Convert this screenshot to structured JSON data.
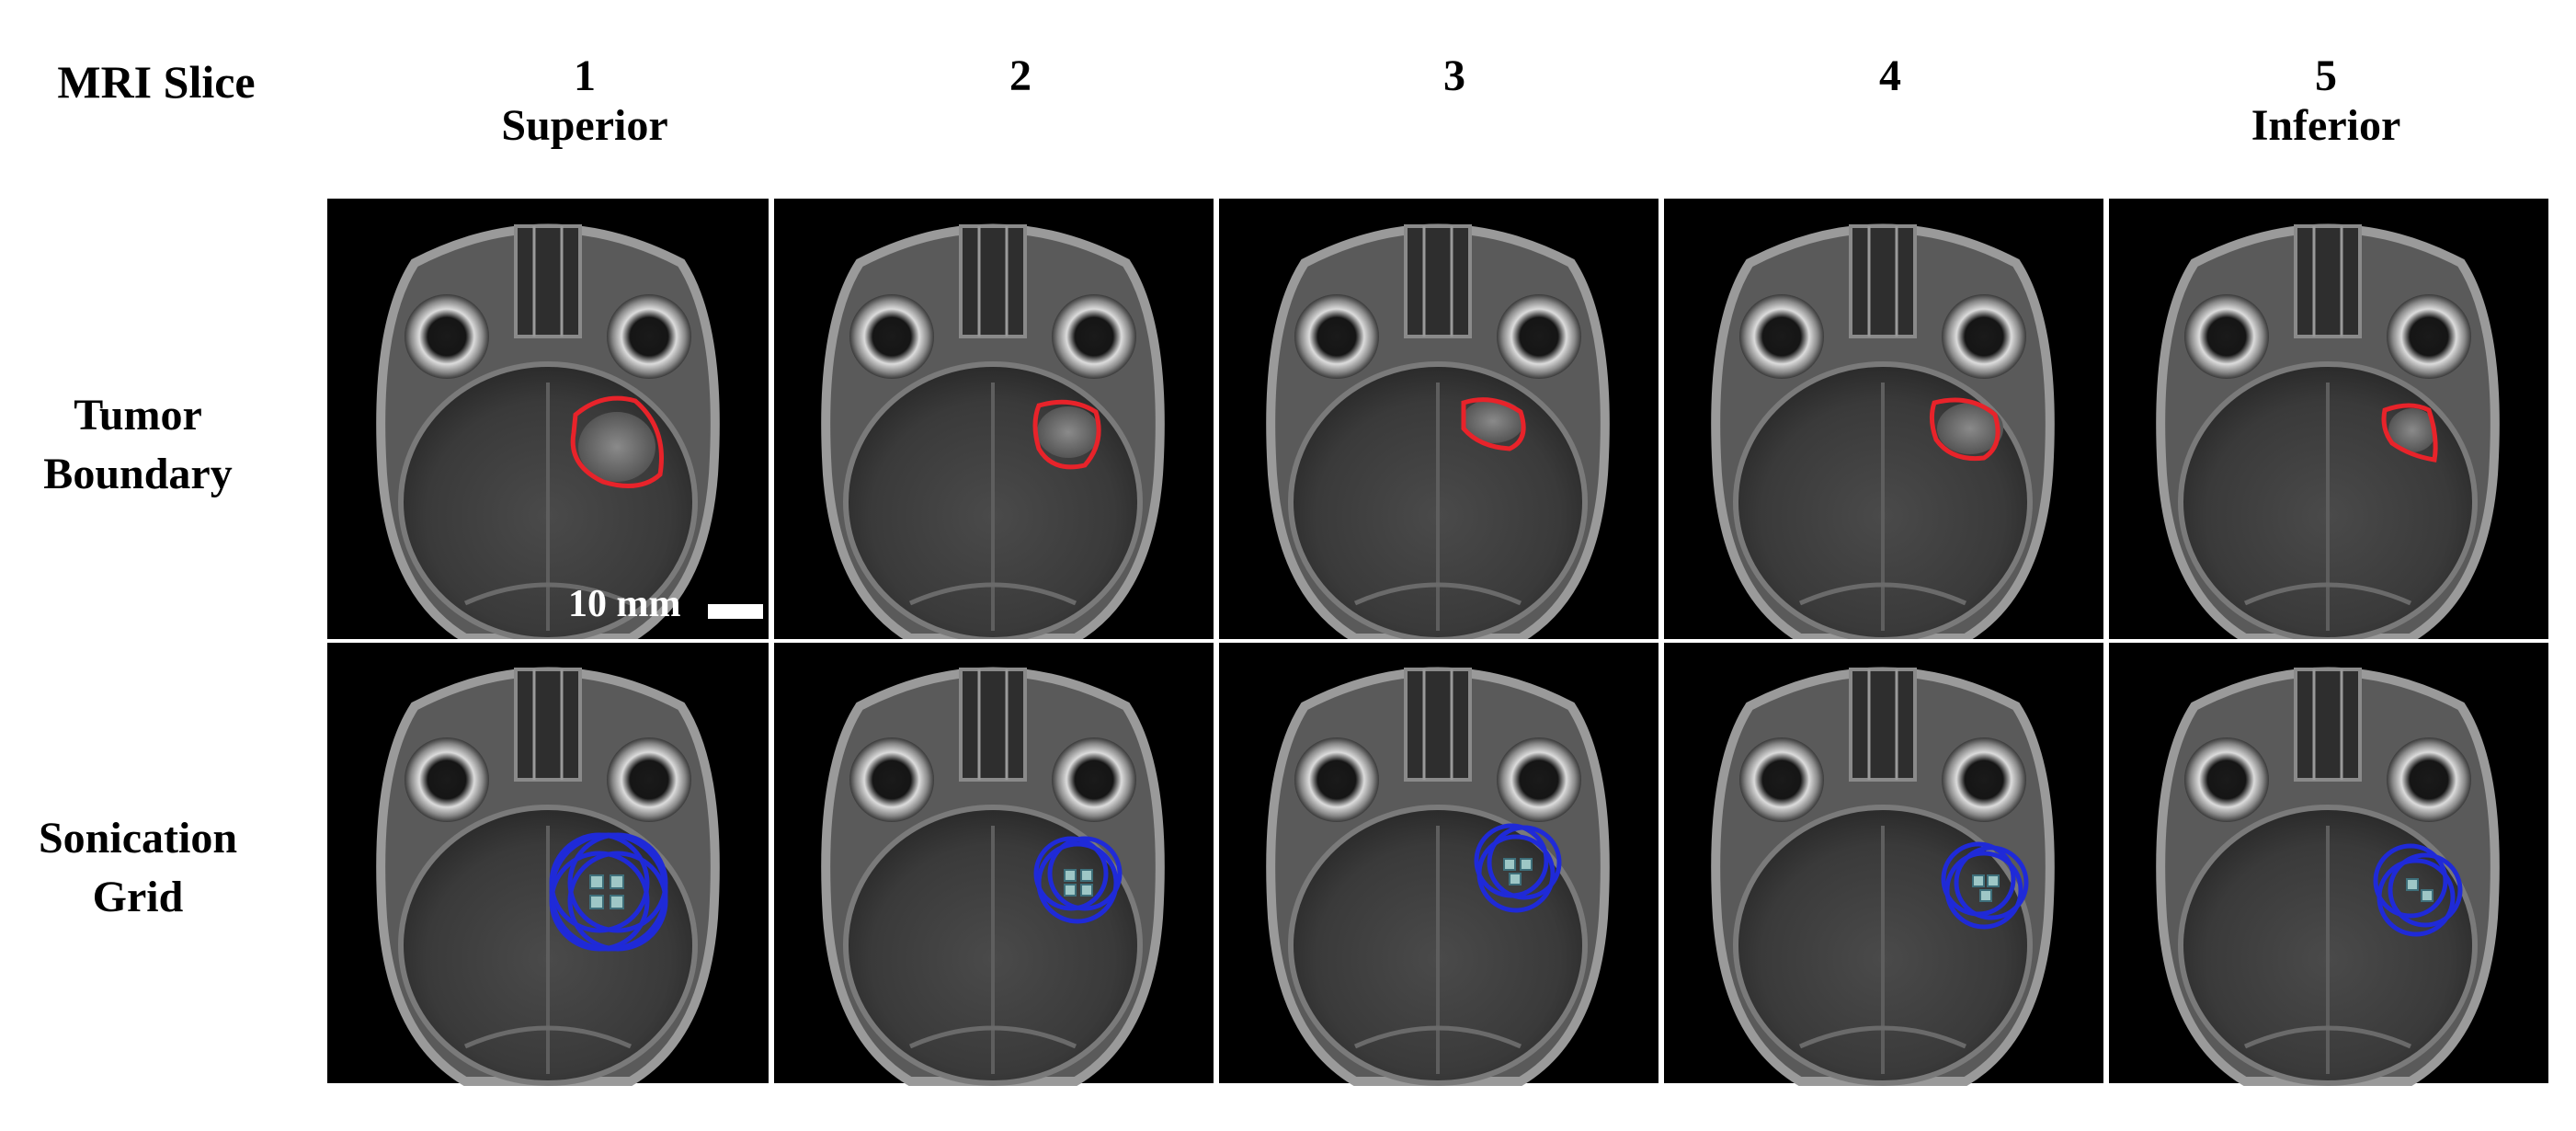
{
  "header": {
    "row_axis_label": "MRI Slice"
  },
  "columns": [
    {
      "number": "1",
      "position": "Superior"
    },
    {
      "number": "2",
      "position": ""
    },
    {
      "number": "3",
      "position": ""
    },
    {
      "number": "4",
      "position": ""
    },
    {
      "number": "5",
      "position": "Inferior"
    }
  ],
  "rows": [
    {
      "line1": "Tumor",
      "line2": "Boundary"
    },
    {
      "line1": "Sonication",
      "line2": "Grid"
    }
  ],
  "scale_bar": {
    "label": "10 mm"
  },
  "colors": {
    "tumor_boundary": "#e8232a",
    "sonication_circle": "#1f2ad8",
    "sonication_point": "#9ec7c6",
    "panel_background": "#000000",
    "separator": "#ffffff"
  },
  "panels": {
    "tumor_boundary_description": "MRI slices with red tumor boundary outlines",
    "sonication_grid_description": "MRI slices with blue sonication focus circles"
  }
}
